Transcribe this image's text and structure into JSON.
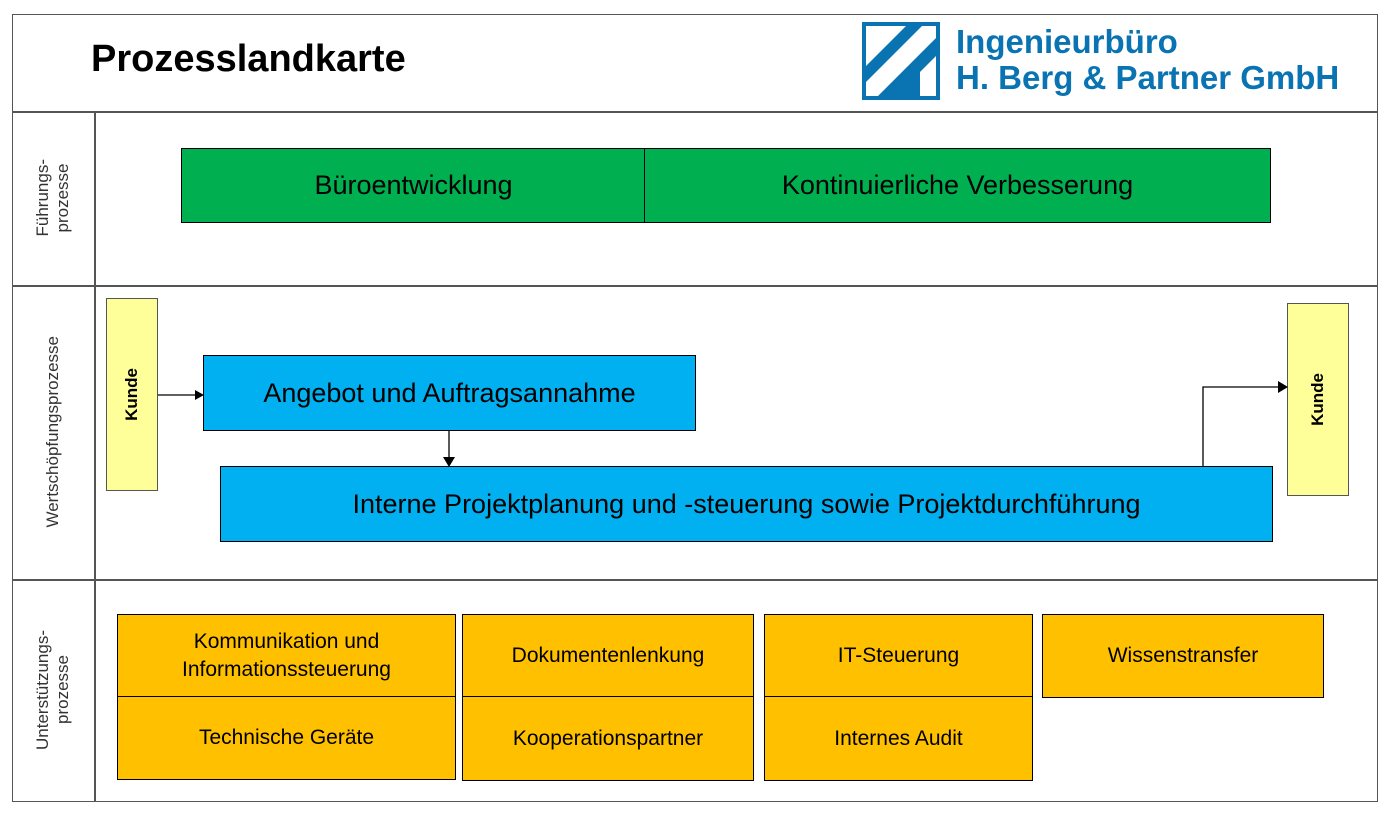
{
  "title": "Prozesslandkarte",
  "logo": {
    "line1": "Ingenieurbüro",
    "line2": "H. Berg & Partner GmbH",
    "color": "#0a73b2"
  },
  "rows": {
    "fuehrung": {
      "label": "Führungs-\nprozesse",
      "boxes": [
        "Büroentwicklung",
        "Kontinuierliche Verbesserung"
      ],
      "color": "#00b050"
    },
    "wertschoepfung": {
      "label": "Wertschöpfungsprozesse",
      "customer_left": "Kunde",
      "customer_right": "Kunde",
      "boxes": [
        "Angebot und Auftragsannahme",
        "Interne Projektplanung und -steuerung sowie Projektdurchführung"
      ],
      "color": "#00b0f0",
      "customer_color": "#ffff99"
    },
    "unterstuetzung": {
      "label": "Unterstützungs-\nprozesse",
      "color": "#ffc000",
      "boxes": [
        "Kommunikation und Informationssteuerung",
        "Dokumentenlenkung",
        "IT-Steuerung",
        "Wissenstransfer",
        "Technische Geräte",
        "Kooperationspartner",
        "Internes Audit"
      ]
    }
  }
}
